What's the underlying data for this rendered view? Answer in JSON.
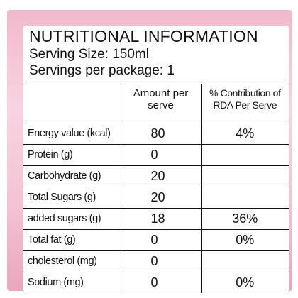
{
  "header": {
    "title": "NUTRITIONAL INFORMATION",
    "serving_size": "Serving Size: 150ml",
    "servings_per_package": "Servings per package: 1"
  },
  "table": {
    "columns": {
      "nutrient": "",
      "amount": "Amount per serve",
      "rda": "% Contribution of RDA Per Serve"
    },
    "rows": [
      {
        "nutrient": "Energy value (kcal)",
        "amount": "80",
        "rda": "4%"
      },
      {
        "nutrient": "Protein (g)",
        "amount": "0",
        "rda": ""
      },
      {
        "nutrient": "Carbohydrate (g)",
        "amount": "20",
        "rda": ""
      },
      {
        "nutrient": "Total Sugars (g)",
        "amount": "20",
        "rda": ""
      },
      {
        "nutrient": "added sugars (g)",
        "amount": "18",
        "rda": "36%"
      },
      {
        "nutrient": "Total fat (g)",
        "amount": "0",
        "rda": "0%"
      },
      {
        "nutrient": "cholesterol (mg)",
        "amount": "0",
        "rda": ""
      },
      {
        "nutrient": "Sodium (mg)",
        "amount": "0",
        "rda": "0%"
      }
    ]
  },
  "colors": {
    "border_accent": "#f2b8cc",
    "text": "#111111"
  }
}
